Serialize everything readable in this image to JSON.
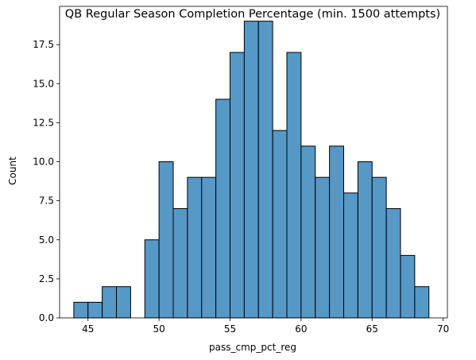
{
  "chart_data": {
    "type": "bar",
    "title": "QB Regular Season Completion Percentage (min. 1500 attempts)",
    "xlabel": "pass_cmp_pct_reg",
    "ylabel": "Count",
    "xlim": [
      43,
      70.3
    ],
    "ylim": [
      0,
      19.95
    ],
    "bin_edges": [
      44,
      45,
      46,
      47,
      48,
      49,
      50,
      51,
      52,
      53,
      54,
      55,
      56,
      57,
      58,
      59,
      60,
      61,
      62,
      63,
      64,
      65,
      66,
      67,
      68,
      69
    ],
    "counts": [
      1,
      1,
      2,
      2,
      0,
      5,
      10,
      7,
      9,
      9,
      14,
      17,
      19,
      19,
      12,
      17,
      11,
      9,
      11,
      8,
      10,
      9,
      7,
      4,
      2
    ],
    "xticks": [
      45,
      50,
      55,
      60,
      65,
      70
    ],
    "yticks": [
      0.0,
      2.5,
      5.0,
      7.5,
      10.0,
      12.5,
      15.0,
      17.5
    ],
    "xtick_labels": [
      "45",
      "50",
      "55",
      "60",
      "65",
      "70"
    ],
    "ytick_labels": [
      "0.0",
      "2.5",
      "5.0",
      "7.5",
      "10.0",
      "12.5",
      "15.0",
      "17.5"
    ],
    "bar_color": "#5698c6",
    "edge_color": "#000000",
    "grid": false,
    "legend": "none"
  }
}
